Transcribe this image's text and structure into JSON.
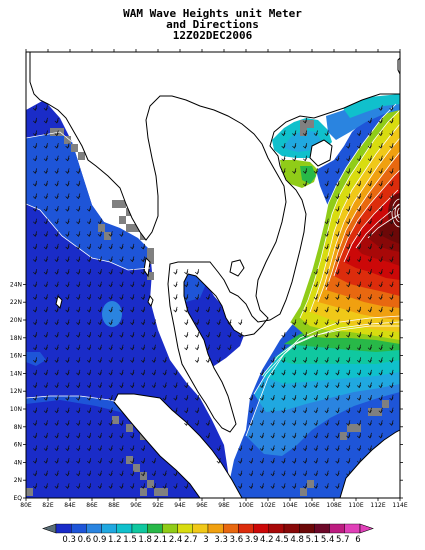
{
  "title": {
    "line1": "WAM Wave Heights unit Meter",
    "line2": "and Directions",
    "line3": "12Z02DEC2006"
  },
  "axes": {
    "lon_labels": [
      "80E",
      "82E",
      "84E",
      "86E",
      "88E",
      "90E",
      "92E",
      "94E",
      "96E",
      "98E",
      "100E",
      "102E",
      "104E",
      "106E",
      "108E",
      "110E",
      "112E",
      "114E"
    ],
    "lat_labels": [
      "EQ",
      "2N",
      "4N",
      "6N",
      "8N",
      "10N",
      "12N",
      "14N",
      "16N",
      "18N",
      "20N",
      "22N",
      "24N"
    ]
  },
  "colorbar": {
    "labels": [
      "0.3",
      "0.6",
      "0.9",
      "1.2",
      "1.5",
      "1.8",
      "2.1",
      "2.4",
      "2.7",
      "3",
      "3.3",
      "3.6",
      "3.9",
      "4.2",
      "4.5",
      "4.8",
      "5.1",
      "5.4",
      "5.7",
      "6"
    ],
    "colors": [
      "#1a2cc8",
      "#1e55d8",
      "#2a84e0",
      "#20a8e0",
      "#10c0cc",
      "#10c8a0",
      "#28b848",
      "#90cc18",
      "#d8dc10",
      "#f0c818",
      "#f0a010",
      "#e86810",
      "#dc2c0c",
      "#cc0808",
      "#a80808",
      "#880808",
      "#6c0808",
      "#6c0828",
      "#bc1c80",
      "#e040b8"
    ],
    "under_color": "#5a6e78",
    "over_color": "#e040b8"
  },
  "colors": {
    "land_mask": "#808080",
    "coast": "#000000",
    "arrow": "#111111",
    "contour": "#ffffff"
  }
}
